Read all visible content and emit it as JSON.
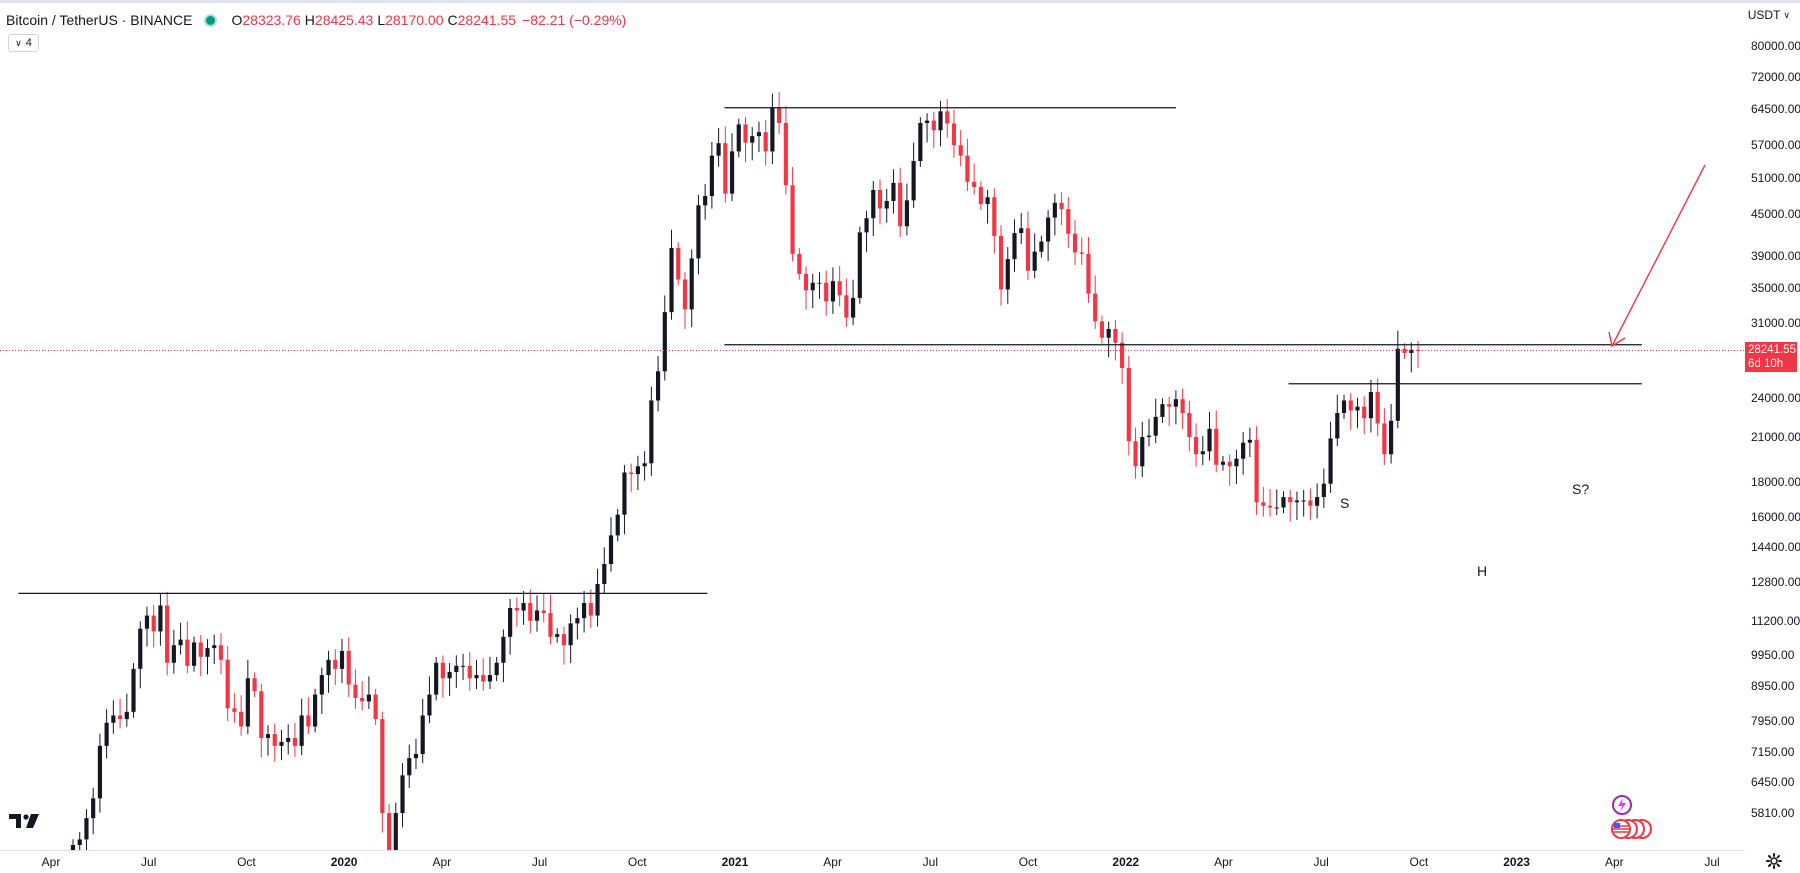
{
  "legend": {
    "symbol": "Bitcoin / TetherUS · BINANCE",
    "open_label": "O",
    "open": "28323.76",
    "high_label": "H",
    "high": "28425.43",
    "low_label": "L",
    "low": "28170.00",
    "close_label": "C",
    "close": "28241.55",
    "change": "−82.21 (−0.29%)",
    "indicator_count": "4"
  },
  "currency": "USDT",
  "last_price": {
    "value": "28241.55",
    "countdown": "6d 10h"
  },
  "annotations": {
    "s": "S",
    "h": "H",
    "s2": "S?"
  },
  "colors": {
    "up": "#131722",
    "down": "#f23645",
    "line": "#131722",
    "arrow": "#f23645",
    "last_price_line": "#f23645"
  },
  "icons": {
    "logo": "tradingview-logo-icon",
    "settings": "gear-icon",
    "events": "lightning-icon",
    "economic": "us-flags-icon"
  },
  "chart_data": {
    "type": "candlestick",
    "interval": "1W",
    "scale": "log",
    "ylim": [
      5200,
      86000
    ],
    "y_tick_labels": [
      "80000.00",
      "72000.00",
      "64500.00",
      "57000.00",
      "51000.00",
      "45000.00",
      "39000.00",
      "35000.00",
      "31000.00",
      "28241.55",
      "24000.00",
      "21000.00",
      "18000.00",
      "16000.00",
      "14400.00",
      "12800.00",
      "11200.00",
      "9950.00",
      "8950.00",
      "7950.00",
      "7150.00",
      "6450.00",
      "5810.00"
    ],
    "x_tick_labels": [
      {
        "label": "Apr",
        "date": "2019-04"
      },
      {
        "label": "Jul",
        "date": "2019-07"
      },
      {
        "label": "Oct",
        "date": "2019-10"
      },
      {
        "label": "2020",
        "date": "2020-01",
        "bold": true
      },
      {
        "label": "Apr",
        "date": "2020-04"
      },
      {
        "label": "Jul",
        "date": "2020-07"
      },
      {
        "label": "Oct",
        "date": "2020-10"
      },
      {
        "label": "2021",
        "date": "2021-01",
        "bold": true
      },
      {
        "label": "Apr",
        "date": "2021-04"
      },
      {
        "label": "Jul",
        "date": "2021-07"
      },
      {
        "label": "Oct",
        "date": "2021-10"
      },
      {
        "label": "2022",
        "date": "2022-01",
        "bold": true
      },
      {
        "label": "Apr",
        "date": "2022-04"
      },
      {
        "label": "Jul",
        "date": "2022-07"
      },
      {
        "label": "Oct",
        "date": "2022-10"
      },
      {
        "label": "2023",
        "date": "2023-01",
        "bold": true
      },
      {
        "label": "Apr",
        "date": "2023-04"
      },
      {
        "label": "Jul",
        "date": "2023-07"
      }
    ],
    "anchors": {
      "first_month": "2019-04",
      "last_month": "2023-07"
    },
    "weekly_closes": [
      5200,
      5300,
      5700,
      6100,
      7300,
      7900,
      8100,
      8000,
      8200,
      9500,
      10900,
      11400,
      10800,
      11800,
      9700,
      10300,
      10500,
      9600,
      10400,
      9900,
      10200,
      10300,
      9800,
      8300,
      8200,
      7800,
      9200,
      8800,
      7500,
      7600,
      7300,
      7400,
      7500,
      7300,
      8100,
      7800,
      8700,
      9300,
      9800,
      9500,
      10100,
      9000,
      8600,
      8500,
      8700,
      8000,
      5800,
      4900,
      5800,
      6600,
      7000,
      7100,
      8100,
      8700,
      9700,
      9200,
      9400,
      9600,
      9600,
      9200,
      9300,
      9100,
      9300,
      9700,
      10600,
      11700,
      11600,
      11900,
      11200,
      11600,
      11500,
      10600,
      10700,
      10300,
      11100,
      11300,
      11900,
      11400,
      12700,
      13600,
      15000,
      16100,
      18600,
      18500,
      19000,
      19200,
      23800,
      26300,
      32200,
      40100,
      36000,
      32500,
      38700,
      46400,
      47900,
      55000,
      57400,
      48300,
      55800,
      61200,
      57500,
      58800,
      59600,
      55800,
      64900,
      61500,
      49700,
      39300,
      36700,
      34700,
      35600,
      35600,
      33400,
      35800,
      34100,
      31600,
      33800,
      42300,
      44400,
      48900,
      45900,
      47100,
      50100,
      43200,
      47200,
      54000,
      61500,
      62000,
      60000,
      64000,
      61400,
      57000,
      55000,
      50300,
      49400,
      46600,
      47700,
      41800,
      34800,
      38600,
      42200,
      42900,
      37100,
      39600,
      41000,
      44500,
      46800,
      45800,
      42100,
      39500,
      39300,
      34300,
      31200,
      29500,
      30400,
      29000,
      26600,
      20700,
      19000,
      21000,
      21100,
      22500,
      23500,
      23300,
      23900,
      22800,
      21000,
      19800,
      20000,
      21600,
      19100,
      19300,
      19000,
      19500,
      20600,
      20800,
      16800,
      16600,
      16500,
      16500,
      17100,
      16800,
      16900,
      16900,
      16600,
      17100,
      17900,
      20900,
      22800,
      23800,
      23000,
      23300,
      22400,
      24500,
      22000,
      19800,
      22200,
      28400,
      28000,
      28300,
      28241.55
    ],
    "horizontal_lines": [
      {
        "level": 12300,
        "from": "2019-03",
        "to": "2020-12"
      },
      {
        "level": 64800,
        "from": "2020-12",
        "to": "2022-03"
      },
      {
        "level": 28800,
        "from": "2020-12",
        "to": "2023-05"
      },
      {
        "level": 25200,
        "from": "2022-06",
        "to": "2023-05"
      }
    ],
    "last_price_line": 28241.55
  }
}
